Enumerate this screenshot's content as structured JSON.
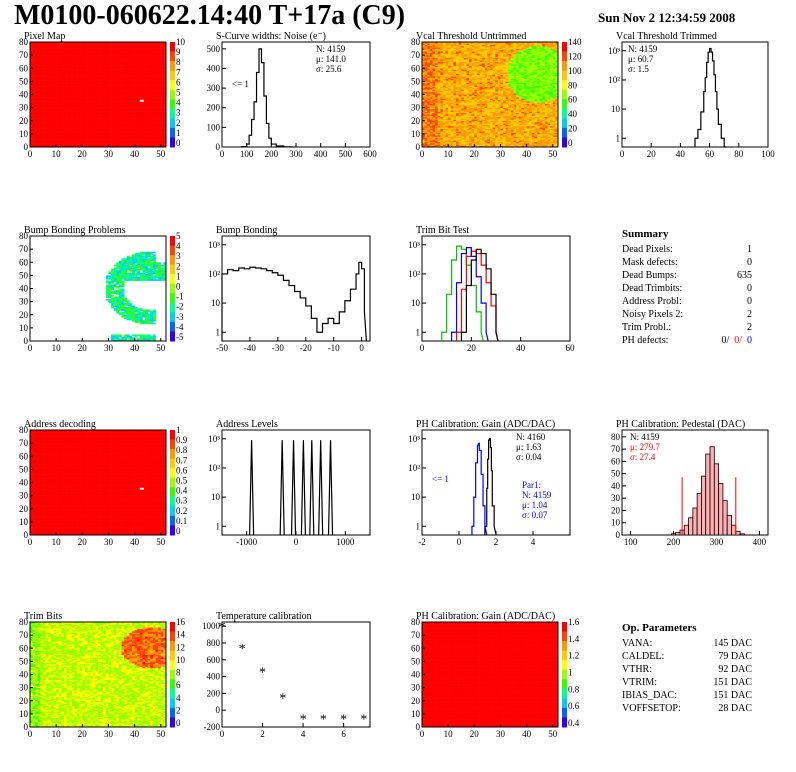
{
  "header": {
    "title": "M0100-060622.14:40 T+17a (C9)",
    "date": "Sun Nov  2 12:34:59 2008"
  },
  "summary": {
    "heading": "Summary",
    "rows": [
      {
        "label": "Dead Pixels:",
        "value": "1"
      },
      {
        "label": "Mask defects:",
        "value": "0"
      },
      {
        "label": "Dead Bumps:",
        "value": "635"
      },
      {
        "label": "Dead Trimbits:",
        "value": "0"
      },
      {
        "label": "Address Probl:",
        "value": "0"
      },
      {
        "label": "Noisy Pixels 2:",
        "value": "2"
      },
      {
        "label": "Trim Probl.:",
        "value": "2"
      }
    ],
    "ph_label": "PH defects:",
    "ph_values": [
      "0/",
      "0/",
      "0"
    ],
    "ph_colors": [
      "#000000",
      "#ff0000",
      "#0000ff"
    ]
  },
  "op_params": {
    "heading": "Op. Parameters",
    "rows": [
      {
        "label": "VANA:",
        "value": "145 DAC"
      },
      {
        "label": "CALDEL:",
        "value": "79 DAC"
      },
      {
        "label": "VTHR:",
        "value": "92 DAC"
      },
      {
        "label": "VTRIM:",
        "value": "151 DAC"
      },
      {
        "label": "IBIAS_DAC:",
        "value": "151 DAC"
      },
      {
        "label": "VOFFSETOP:",
        "value": "28 DAC"
      }
    ]
  },
  "chart_data": [
    {
      "id": "pixel-map",
      "type": "heatmap",
      "title": "Pixel Map",
      "xlim": [
        0,
        52
      ],
      "ylim": [
        0,
        80
      ],
      "xticks": [
        0,
        10,
        20,
        30,
        40,
        50
      ],
      "yticks": [
        0,
        10,
        20,
        30,
        40,
        50,
        60,
        70,
        80
      ],
      "zticks": [
        "10",
        "9",
        "8",
        "7",
        "6",
        "5",
        "4",
        "3",
        "2",
        "1",
        "0"
      ],
      "fill": "uniform-red",
      "dead_pixels": [
        [
          42,
          36
        ]
      ]
    },
    {
      "id": "scurve-widths",
      "type": "line",
      "title": "S-Curve widths: Noise (e⁻)",
      "xlim": [
        0,
        600
      ],
      "xticks": [
        0,
        100,
        200,
        300,
        400,
        500,
        600
      ],
      "yticks": [
        0,
        100,
        200,
        300,
        400,
        500
      ],
      "stats": [
        "N: 4159",
        "μ: 141.0",
        "σ: 25.6"
      ],
      "annotation": "<= 1",
      "x": [
        80,
        100,
        110,
        120,
        130,
        140,
        150,
        160,
        170,
        180,
        190,
        200,
        220,
        250,
        280
      ],
      "values": [
        2,
        15,
        60,
        140,
        230,
        380,
        500,
        430,
        260,
        120,
        45,
        15,
        5,
        1,
        0
      ]
    },
    {
      "id": "vcal-untrimmed",
      "type": "heatmap",
      "title": "Vcal Threshold Untrimmed",
      "xlim": [
        0,
        52
      ],
      "ylim": [
        0,
        80
      ],
      "xticks": [
        0,
        10,
        20,
        30,
        40,
        50
      ],
      "yticks": [
        0,
        10,
        20,
        30,
        40,
        50,
        60,
        70,
        80
      ],
      "zticks": [
        "140",
        "120",
        "100",
        "80",
        "60",
        "40",
        "20",
        "0"
      ],
      "fill": "orange-green-gradient"
    },
    {
      "id": "vcal-trimmed",
      "type": "line",
      "title": "Vcal Threshold Trimmed",
      "ylog": true,
      "xlim": [
        0,
        100
      ],
      "xticks": [
        0,
        20,
        40,
        60,
        80,
        100
      ],
      "yticks": [
        "1",
        "10",
        "10²",
        "10³"
      ],
      "stats": [
        "N: 4159",
        "μ: 60.7",
        "σ:  1.5"
      ],
      "x": [
        50,
        52,
        54,
        56,
        57,
        58,
        59,
        60,
        61,
        62,
        63,
        64,
        65,
        66,
        68,
        70
      ],
      "values": [
        1,
        2,
        8,
        40,
        120,
        400,
        900,
        1200,
        900,
        450,
        150,
        40,
        10,
        3,
        1,
        0
      ]
    },
    {
      "id": "bump-bonding-problems",
      "type": "heatmap",
      "title": "Bump Bonding Problems",
      "xlim": [
        0,
        52
      ],
      "ylim": [
        0,
        80
      ],
      "xticks": [
        0,
        10,
        20,
        30,
        40,
        50
      ],
      "yticks": [
        0,
        10,
        20,
        30,
        40,
        50,
        60,
        70,
        80
      ],
      "zticks": [
        "5",
        "4",
        "3",
        "2",
        "1",
        "0",
        "-1",
        "-2",
        "-3",
        "-4",
        "-5"
      ],
      "fill": "crescent"
    },
    {
      "id": "bump-bonding",
      "type": "line",
      "title": "Bump Bonding",
      "ylog": true,
      "xlim": [
        -50,
        3
      ],
      "xticks": [
        -50,
        -40,
        -30,
        -20,
        -10,
        0
      ],
      "yticks": [
        "1",
        "10",
        "10²",
        "10³"
      ],
      "x": [
        -50,
        -48,
        -46,
        -44,
        -42,
        -40,
        -38,
        -36,
        -34,
        -32,
        -30,
        -28,
        -26,
        -24,
        -22,
        -20,
        -18,
        -16,
        -14,
        -12,
        -10,
        -8,
        -6,
        -4,
        -2,
        -1,
        0,
        1
      ],
      "values": [
        100,
        140,
        130,
        160,
        150,
        170,
        160,
        150,
        130,
        110,
        90,
        60,
        40,
        25,
        15,
        8,
        3,
        1,
        2,
        3,
        2,
        5,
        12,
        30,
        100,
        250,
        150,
        5
      ]
    },
    {
      "id": "trim-bit-test",
      "type": "line",
      "title": "Trim Bit Test",
      "ylog": true,
      "xlim": [
        0,
        60
      ],
      "xticks": [
        0,
        20,
        40,
        60
      ],
      "yticks": [
        "1",
        "10",
        "10²",
        "10³"
      ],
      "series": [
        {
          "color": "#00c000",
          "x": [
            8,
            10,
            12,
            14,
            16,
            18,
            20,
            22,
            24
          ],
          "values": [
            1,
            20,
            300,
            900,
            700,
            200,
            40,
            5,
            1
          ]
        },
        {
          "color": "#ff0000",
          "x": [
            14,
            16,
            18,
            20,
            22,
            24,
            26,
            28,
            30
          ],
          "values": [
            1,
            30,
            400,
            600,
            500,
            200,
            50,
            8,
            1
          ]
        },
        {
          "color": "#0000ff",
          "x": [
            12,
            14,
            16,
            18,
            20,
            22,
            24,
            26
          ],
          "values": [
            1,
            50,
            500,
            800,
            400,
            80,
            10,
            1
          ]
        },
        {
          "color": "#000000",
          "x": [
            16,
            18,
            20,
            22,
            24,
            26,
            28,
            30
          ],
          "values": [
            1,
            40,
            300,
            700,
            500,
            150,
            20,
            1
          ]
        }
      ]
    },
    {
      "id": "address-decoding",
      "type": "heatmap",
      "title": "Address decoding",
      "xlim": [
        0,
        52
      ],
      "ylim": [
        0,
        80
      ],
      "xticks": [
        0,
        10,
        20,
        30,
        40,
        50
      ],
      "yticks": [
        0,
        10,
        20,
        30,
        40,
        50,
        60,
        70,
        80
      ],
      "zticks": [
        "1",
        "0.9",
        "0.8",
        "0.7",
        "0.6",
        "0.5",
        "0.4",
        "0.3",
        "0.2",
        "0.1",
        "0"
      ],
      "fill": "uniform-red",
      "dead_pixels": [
        [
          42,
          36
        ]
      ]
    },
    {
      "id": "address-levels",
      "type": "line",
      "title": "Address Levels",
      "ylog": true,
      "xlim": [
        -1500,
        1500
      ],
      "xticks": [
        -1000,
        0,
        1000
      ],
      "yticks": [
        "1",
        "10",
        "10²",
        "10³"
      ],
      "peaks": [
        -900,
        -280,
        -50,
        150,
        320,
        500,
        700
      ]
    },
    {
      "id": "ph-gain",
      "type": "line",
      "title": "PH Calibration: Gain (ADC/DAC)",
      "ylog": true,
      "xlim": [
        -2,
        6
      ],
      "xticks": [
        -2,
        0,
        2,
        4
      ],
      "yticks": [
        "1",
        "10",
        "10²",
        "10³"
      ],
      "stats": [
        "N: 4160",
        "μ: 1.63",
        "σ: 0.04"
      ],
      "annotation": "<= 1",
      "stats2": [
        "Par1:",
        "N: 4159",
        "μ: 1.04",
        "σ: 0.07"
      ],
      "series": [
        {
          "color": "#000000",
          "x": [
            1.4,
            1.5,
            1.55,
            1.6,
            1.65,
            1.7,
            1.75,
            1.8,
            1.9
          ],
          "values": [
            1,
            20,
            200,
            900,
            1000,
            500,
            80,
            5,
            1
          ]
        },
        {
          "color": "#0000ff",
          "x": [
            0.7,
            0.8,
            0.9,
            1.0,
            1.05,
            1.1,
            1.2,
            1.3,
            1.4
          ],
          "values": [
            1,
            10,
            150,
            600,
            700,
            400,
            60,
            5,
            1
          ]
        }
      ]
    },
    {
      "id": "ph-pedestal",
      "type": "bar",
      "title": "PH Calibration: Pedestal (DAC)",
      "xlim": [
        80,
        420
      ],
      "xticks": [
        100,
        200,
        300,
        400
      ],
      "yticks": [
        0,
        10,
        20,
        30,
        40,
        50,
        60,
        70,
        80
      ],
      "stats": [
        "N: 4159",
        "μ: 279.7",
        "σ: 27.4"
      ],
      "stat_colors": [
        "#000000",
        "#ff0000",
        "#ff0000"
      ],
      "x": [
        200,
        210,
        220,
        230,
        240,
        250,
        260,
        270,
        280,
        290,
        300,
        310,
        320,
        330,
        340,
        350,
        360
      ],
      "values": [
        1,
        2,
        4,
        8,
        14,
        22,
        34,
        48,
        66,
        72,
        58,
        42,
        28,
        16,
        8,
        3,
        1
      ]
    },
    {
      "id": "trim-bits",
      "type": "heatmap",
      "title": "Trim Bits",
      "xlim": [
        0,
        52
      ],
      "ylim": [
        0,
        80
      ],
      "xticks": [
        0,
        10,
        20,
        30,
        40,
        50
      ],
      "yticks": [
        0,
        10,
        20,
        30,
        40,
        50,
        60,
        70,
        80
      ],
      "zticks": [
        "16",
        "14",
        "12",
        "10",
        "8",
        "6",
        "4",
        "2",
        "0"
      ],
      "fill": "green-mix"
    },
    {
      "id": "temperature-calibration",
      "type": "scatter",
      "title": "Temperature calibration",
      "xlim": [
        0,
        7.3
      ],
      "ylim": [
        -200,
        1050
      ],
      "xticks": [
        0,
        2,
        4,
        6
      ],
      "yticks": [
        -200,
        0,
        200,
        400,
        600,
        800,
        1000
      ],
      "x": [
        0,
        1,
        2,
        3,
        4,
        5,
        6,
        7
      ],
      "values": [
        1000,
        740,
        460,
        150,
        -100,
        -100,
        -100,
        -100
      ]
    },
    {
      "id": "ph-gain-map",
      "type": "heatmap",
      "title": "PH Calibration: Gain (ADC/DAC)",
      "xlim": [
        0,
        52
      ],
      "ylim": [
        0,
        80
      ],
      "xticks": [
        0,
        10,
        20,
        30,
        40,
        50
      ],
      "yticks": [
        0,
        10,
        20,
        30,
        40,
        50,
        60,
        70,
        80
      ],
      "zticks": [
        "1.6",
        "1.4",
        "1.2",
        "1",
        "0.8",
        "0.6",
        "0.4"
      ],
      "fill": "uniform-red"
    }
  ]
}
